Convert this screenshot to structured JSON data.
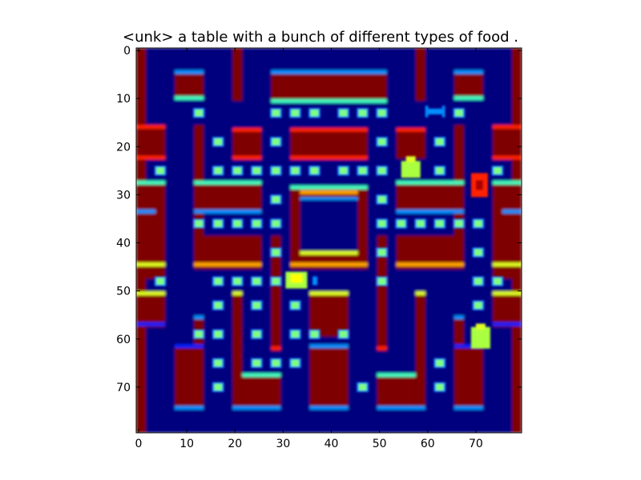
{
  "title": "<unk> a table with a bunch of different types of food .",
  "xticks": [
    "0",
    "10",
    "20",
    "30",
    "40",
    "50",
    "60",
    "70"
  ],
  "yticks": [
    "0",
    "10",
    "20",
    "30",
    "40",
    "50",
    "60",
    "70"
  ],
  "colors": {
    "background": "#00007f",
    "wall": "#7f0000",
    "wall_edge_red": "#ff2000",
    "wall_edge_orange": "#ffa500",
    "wall_edge_yellow": "#e0ff20",
    "wall_edge_cyan": "#40ffc0",
    "wall_edge_blue": "#0090ff",
    "wall_edge_navy": "#0020ff",
    "pellet": "#7fff7f",
    "pellet_glow": "#1e90ff",
    "ghost": "#aaff40",
    "pacman": "#ffff00"
  }
}
